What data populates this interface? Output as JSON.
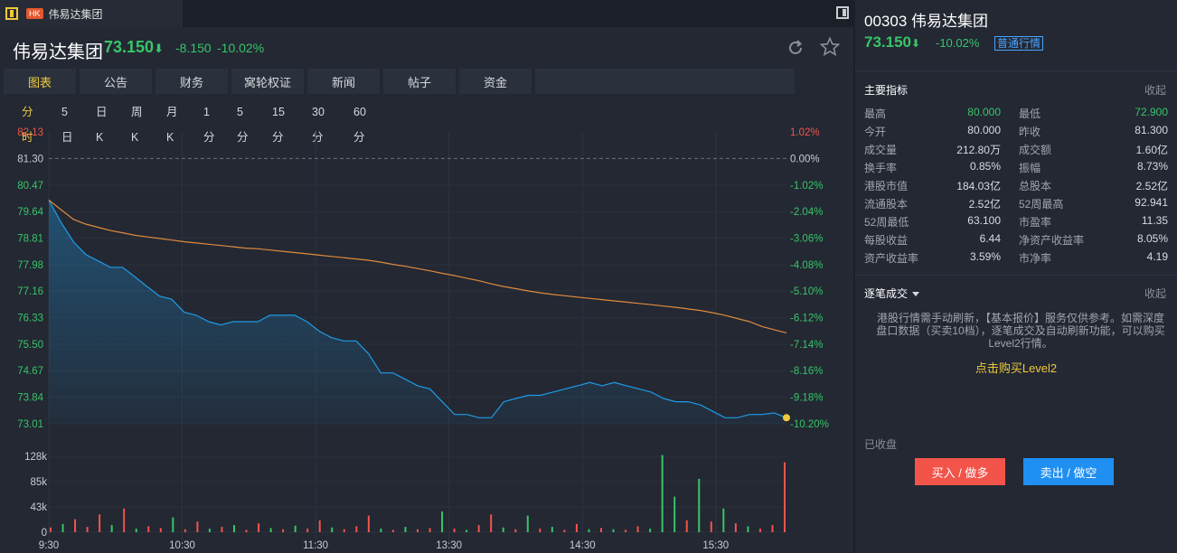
{
  "tab": {
    "market_badge": "HK",
    "name": "伟易达集团"
  },
  "header": {
    "name": "伟易达集团",
    "price": "73.150",
    "change": "-8.150",
    "change_pct": "-10.02%",
    "arrow": "⬇"
  },
  "nav": [
    "图表",
    "公告",
    "财务",
    "窝轮权证",
    "新闻",
    "帖子",
    "资金"
  ],
  "periods": [
    "分时",
    "5日",
    "日K",
    "周K",
    "月K",
    "1分",
    "5分",
    "15分",
    "30分",
    "60分"
  ],
  "colors": {
    "up": "#f2544a",
    "down": "#38c468",
    "price_line": "#1e9be6",
    "avg_line": "#e08a3c",
    "accent": "#f0c93c"
  },
  "chart_data": {
    "type": "line",
    "x_ticks": [
      "9:30",
      "10:30",
      "11:30",
      "13:30",
      "14:30",
      "15:30"
    ],
    "price_axis": [
      "82.13",
      "81.30",
      "80.47",
      "79.64",
      "78.81",
      "77.98",
      "77.16",
      "76.33",
      "75.50",
      "74.67",
      "73.84",
      "73.01"
    ],
    "pct_axis": [
      "1.02%",
      "0.00%",
      "-1.02%",
      "-2.04%",
      "-3.06%",
      "-4.08%",
      "-5.10%",
      "-6.12%",
      "-7.14%",
      "-8.16%",
      "-9.18%",
      "-10.20%"
    ],
    "prev_close": 81.3,
    "ylim": [
      73.01,
      82.13
    ],
    "price_series": [
      80.0,
      79.3,
      78.7,
      78.3,
      78.1,
      77.9,
      77.9,
      77.6,
      77.3,
      77.0,
      76.9,
      76.5,
      76.4,
      76.2,
      76.1,
      76.2,
      76.2,
      76.2,
      76.4,
      76.4,
      76.4,
      76.2,
      75.9,
      75.7,
      75.6,
      75.6,
      75.2,
      74.6,
      74.6,
      74.4,
      74.2,
      74.1,
      73.7,
      73.3,
      73.3,
      73.2,
      73.2,
      73.7,
      73.8,
      73.9,
      73.9,
      74.0,
      74.1,
      74.2,
      74.3,
      74.2,
      74.3,
      74.2,
      74.1,
      74.0,
      73.8,
      73.7,
      73.7,
      73.6,
      73.4,
      73.2,
      73.2,
      73.3,
      73.3,
      73.35,
      73.2
    ],
    "avg_series": [
      80.0,
      79.7,
      79.4,
      79.25,
      79.15,
      79.05,
      78.98,
      78.9,
      78.85,
      78.8,
      78.75,
      78.7,
      78.66,
      78.62,
      78.58,
      78.54,
      78.5,
      78.48,
      78.44,
      78.4,
      78.36,
      78.32,
      78.28,
      78.24,
      78.2,
      78.16,
      78.12,
      78.06,
      77.99,
      77.93,
      77.86,
      77.79,
      77.71,
      77.64,
      77.56,
      77.48,
      77.38,
      77.3,
      77.23,
      77.16,
      77.1,
      77.05,
      77.01,
      76.97,
      76.93,
      76.89,
      76.85,
      76.81,
      76.77,
      76.73,
      76.69,
      76.65,
      76.6,
      76.55,
      76.48,
      76.4,
      76.3,
      76.2,
      76.05,
      75.95,
      75.85
    ],
    "volume_axis": [
      "128k",
      "85k",
      "43k",
      "0"
    ],
    "volume_max": 128000,
    "volumes": [
      {
        "v": 8000,
        "up": false
      },
      {
        "v": 14000,
        "up": true
      },
      {
        "v": 22000,
        "up": false
      },
      {
        "v": 9000,
        "up": false
      },
      {
        "v": 30000,
        "up": false
      },
      {
        "v": 12000,
        "up": true
      },
      {
        "v": 40000,
        "up": false
      },
      {
        "v": 6000,
        "up": true
      },
      {
        "v": 10000,
        "up": false
      },
      {
        "v": 7000,
        "up": false
      },
      {
        "v": 25000,
        "up": true
      },
      {
        "v": 5000,
        "up": false
      },
      {
        "v": 18000,
        "up": false
      },
      {
        "v": 6000,
        "up": true
      },
      {
        "v": 9000,
        "up": false
      },
      {
        "v": 12000,
        "up": true
      },
      {
        "v": 4000,
        "up": false
      },
      {
        "v": 15000,
        "up": false
      },
      {
        "v": 7000,
        "up": true
      },
      {
        "v": 5000,
        "up": false
      },
      {
        "v": 11000,
        "up": true
      },
      {
        "v": 6000,
        "up": false
      },
      {
        "v": 20000,
        "up": false
      },
      {
        "v": 8000,
        "up": true
      },
      {
        "v": 5000,
        "up": false
      },
      {
        "v": 10000,
        "up": false
      },
      {
        "v": 28000,
        "up": false
      },
      {
        "v": 6000,
        "up": true
      },
      {
        "v": 4000,
        "up": false
      },
      {
        "v": 9000,
        "up": true
      },
      {
        "v": 5000,
        "up": false
      },
      {
        "v": 7000,
        "up": false
      },
      {
        "v": 35000,
        "up": true
      },
      {
        "v": 6000,
        "up": false
      },
      {
        "v": 4000,
        "up": true
      },
      {
        "v": 12000,
        "up": false
      },
      {
        "v": 30000,
        "up": false
      },
      {
        "v": 8000,
        "up": true
      },
      {
        "v": 5000,
        "up": false
      },
      {
        "v": 28000,
        "up": true
      },
      {
        "v": 6000,
        "up": false
      },
      {
        "v": 9000,
        "up": true
      },
      {
        "v": 4000,
        "up": false
      },
      {
        "v": 14000,
        "up": false
      },
      {
        "v": 5000,
        "up": true
      },
      {
        "v": 7000,
        "up": false
      },
      {
        "v": 5000,
        "up": true
      },
      {
        "v": 4000,
        "up": false
      },
      {
        "v": 10000,
        "up": false
      },
      {
        "v": 6000,
        "up": true
      },
      {
        "v": 130000,
        "up": true
      },
      {
        "v": 60000,
        "up": true
      },
      {
        "v": 20000,
        "up": false
      },
      {
        "v": 90000,
        "up": true
      },
      {
        "v": 18000,
        "up": false
      },
      {
        "v": 40000,
        "up": true
      },
      {
        "v": 15000,
        "up": false
      },
      {
        "v": 10000,
        "up": true
      },
      {
        "v": 6000,
        "up": false
      },
      {
        "v": 12000,
        "up": false
      },
      {
        "v": 118000,
        "up": false
      }
    ]
  },
  "quote": {
    "code": "00303",
    "name": "伟易达集团",
    "price": "73.150",
    "arrow": "⬇",
    "change_pct": "-10.02%",
    "badge": "普通行情",
    "section_title": "主要指标",
    "fold": "收起",
    "metrics": [
      {
        "l1": "最高",
        "v1": "80.000",
        "c1": "#38c468",
        "l2": "最低",
        "v2": "72.900",
        "c2": "#38c468"
      },
      {
        "l1": "今开",
        "v1": "80.000",
        "c1": "#d8dbe0",
        "l2": "昨收",
        "v2": "81.300",
        "c2": "#d8dbe0"
      },
      {
        "l1": "成交量",
        "v1": "212.80万",
        "c1": "#d8dbe0",
        "l2": "成交额",
        "v2": "1.60亿",
        "c2": "#d8dbe0"
      },
      {
        "l1": "换手率",
        "v1": "0.85%",
        "c1": "#d8dbe0",
        "l2": "振幅",
        "v2": "8.73%",
        "c2": "#d8dbe0"
      },
      {
        "l1": "港股市值",
        "v1": "184.03亿",
        "c1": "#d8dbe0",
        "l2": "总股本",
        "v2": "2.52亿",
        "c2": "#d8dbe0"
      },
      {
        "l1": "流通股本",
        "v1": "2.52亿",
        "c1": "#d8dbe0",
        "l2": "52周最高",
        "v2": "92.941",
        "c2": "#d8dbe0"
      },
      {
        "l1": "52周最低",
        "v1": "63.100",
        "c1": "#d8dbe0",
        "l2": "市盈率",
        "v2": "11.35",
        "c2": "#d8dbe0"
      },
      {
        "l1": "每股收益",
        "v1": "6.44",
        "c1": "#d8dbe0",
        "l2": "净资产收益率",
        "v2": "8.05%",
        "c2": "#d8dbe0"
      },
      {
        "l1": "资产收益率",
        "v1": "3.59%",
        "c1": "#d8dbe0",
        "l2": "市净率",
        "v2": "4.19",
        "c2": "#d8dbe0"
      }
    ],
    "ticks_title": "逐笔成交",
    "ticks_fold": "收起",
    "notice": "港股行情需手动刷新，【基本报价】服务仅供参考。如需深度盘口数据（买卖10档），逐笔成交及自动刷新功能，可以购买Level2行情。",
    "buy_level2": "点击购买Level2",
    "status": "已收盘",
    "buy_button": "买入 / 做多",
    "sell_button": "卖出 / 做空"
  }
}
